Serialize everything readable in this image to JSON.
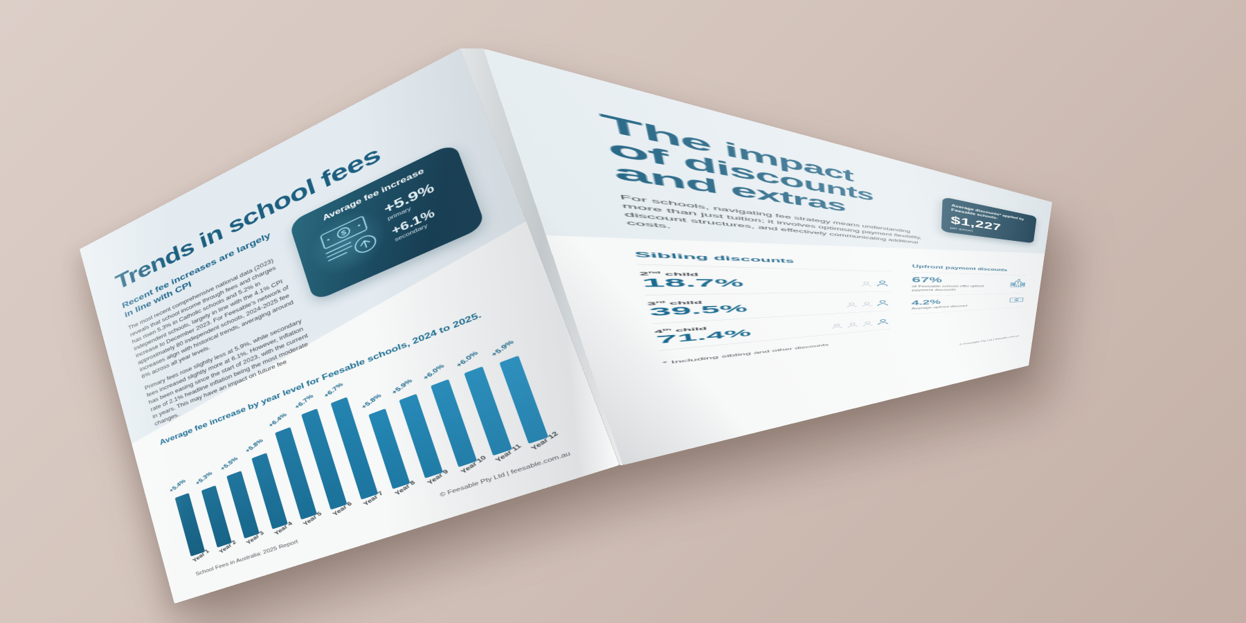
{
  "background": {
    "beige_top": "#dccfc8",
    "beige_bottom": "#c3afa5"
  },
  "colors": {
    "accent_teal": "#1c5f80",
    "heading_teal": "#186288",
    "bar_teal": "#16648a",
    "card_dark": "#10354a",
    "page_tint_band": "#e3ebf0",
    "body_text": "#43484c"
  },
  "left_page": {
    "title": "Trends in school fees",
    "subheading": "Recent fee increases are largely in line with CPI",
    "paragraphs": [
      "The most recent comprehensive national data (2023) reveals that school income through fees and charges has risen 5.3% in Catholic schools and 5.2% in independent schools, largely in line with the 4.1% CPI increase to December 2023. For Feesable's network of approximately 80 independent schools, 2024-2025 fee increases align with historical trends, averaging around 6% across all year levels.",
      "Primary fees rose slightly less at 5.9%, while secondary fees increased slightly more at 6.1%. However, inflation has been easing since the start of 2023, with the current rate of 2.1% headline inflation being the most moderate in years. This may have an impact on future fee changes."
    ],
    "fee_card": {
      "title": "Average fee increase",
      "icon": "banknote-up-arrow-icon",
      "stats": [
        {
          "value": "+5.9%",
          "label": "primary"
        },
        {
          "value": "+6.1%",
          "label": "secondary"
        }
      ]
    },
    "footer_left": "School Fees in Australia: 2025 Report",
    "footer_right": "© Feesable Pty Ltd | feesable.com.au"
  },
  "chart_data": {
    "type": "bar",
    "title": "Average fee increase by year level for Feesable schools, 2024 to 2025.",
    "categories": [
      "Year 1",
      "Year 2",
      "Year 3",
      "Year 4",
      "Year 5",
      "Year 6",
      "Year 7",
      "Year 8",
      "Year 9",
      "Year 10",
      "Year 11",
      "Year 12"
    ],
    "values": [
      5.4,
      5.3,
      5.5,
      5.8,
      6.4,
      6.7,
      6.7,
      5.8,
      5.9,
      6.0,
      6.0,
      5.9
    ],
    "value_labels": [
      "+5.4%",
      "+5.3%",
      "+5.5%",
      "+5.8%",
      "+6.4%",
      "+6.7%",
      "+6.7%",
      "+5.8%",
      "+5.9%",
      "+6.0%",
      "+6.0%",
      "+5.9%"
    ],
    "value_suffix": "%",
    "xlabel": "",
    "ylabel": "",
    "ylim": [
      0,
      7
    ],
    "grid": false,
    "legend": false,
    "bar_color": "#16648a"
  },
  "right_page": {
    "title_lines": [
      "The impact",
      "of discounts",
      "and extras"
    ],
    "intro": "For schools, navigating fee strategy means understanding more than just tuition; it involves optimising payment flexibility, discount structures, and effectively communicating additional costs.",
    "discount_card": {
      "title": "Average discounts* applied by Feesable schools:",
      "value": "$1,227",
      "unit": "per annum"
    },
    "sibling_discounts": {
      "heading": "Sibling discounts",
      "rows": [
        {
          "ordinal": "2",
          "suffix": "nd",
          "rest": " child",
          "value": "18.7%",
          "people": 2
        },
        {
          "ordinal": "3",
          "suffix": "rd",
          "rest": " child",
          "value": "39.5%",
          "people": 3
        },
        {
          "ordinal": "4",
          "suffix": "th",
          "rest": " child",
          "value": "71.4%",
          "people": 4
        }
      ]
    },
    "upfront_discounts": {
      "heading": "Upfront payment discounts",
      "stats": [
        {
          "value": "67%",
          "description": "of Feesable schools offer upfront payment discounts",
          "icon": "school-building-icon"
        },
        {
          "value": "4.2%",
          "description": "Average upfront discount",
          "icon": "banknote-icon"
        }
      ]
    },
    "footnote": "* Including sibling and other discounts",
    "footer_right": "© Feesable Pty Ltd | feesable.com.au"
  }
}
